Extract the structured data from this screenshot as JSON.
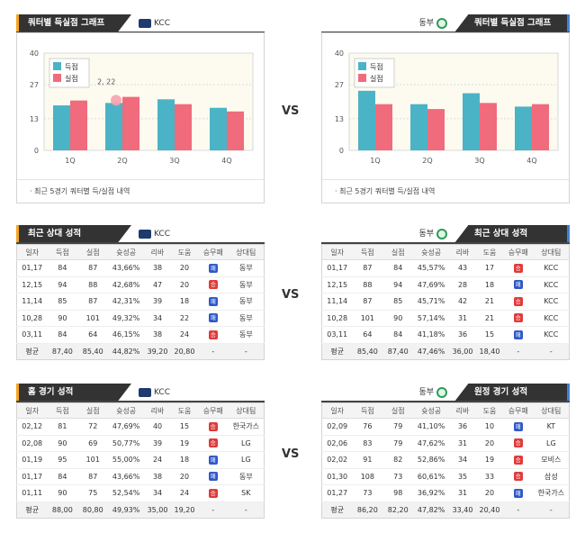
{
  "sections": {
    "quarter": {
      "left_title": "쿼터별 득실점 그래프",
      "right_title": "쿼터별 득실점 그래프",
      "note": "최근 5경기 쿼터별 득/실점 내역"
    },
    "recent": {
      "left_title": "최근 상대 성적",
      "right_title": "최근 상대 성적"
    },
    "venue": {
      "left_title": "홈 경기 성적",
      "right_title": "원정 경기 성적"
    }
  },
  "teams": {
    "left": "KCC",
    "right": "동부"
  },
  "vs_label": "VS",
  "legend": {
    "scored": "득점",
    "conceded": "실점"
  },
  "tooltip": "2, 22",
  "colors": {
    "scored": "#4bb3c6",
    "conceded": "#f06b7c",
    "accent_left": "#f5a623",
    "accent_right": "#3b82d6"
  },
  "chart_data": [
    {
      "type": "bar",
      "categories": [
        "1Q",
        "2Q",
        "3Q",
        "4Q"
      ],
      "series": [
        {
          "name": "득점",
          "values": [
            18.5,
            19.5,
            21,
            17.5
          ]
        },
        {
          "name": "실점",
          "values": [
            20.5,
            22,
            19,
            16
          ]
        }
      ],
      "yticks": [
        "0",
        "13",
        "27",
        "40"
      ],
      "ylim": [
        0,
        40
      ],
      "legend_position": "top-left",
      "grid": true
    },
    {
      "type": "bar",
      "categories": [
        "1Q",
        "2Q",
        "3Q",
        "4Q"
      ],
      "series": [
        {
          "name": "득점",
          "values": [
            24.5,
            19,
            23.5,
            18
          ]
        },
        {
          "name": "실점",
          "values": [
            19,
            17,
            19.5,
            19
          ]
        }
      ],
      "yticks": [
        "0",
        "13",
        "27",
        "40"
      ],
      "ylim": [
        0,
        40
      ],
      "legend_position": "top-left",
      "grid": true
    }
  ],
  "table_headers": [
    "일자",
    "득점",
    "실점",
    "슛성공",
    "리바",
    "도움",
    "승무패",
    "상대팀"
  ],
  "result_labels": {
    "win": "승",
    "loss": "패"
  },
  "avg_label": "평균",
  "recent_left": {
    "rows": [
      {
        "date": "01,17",
        "pts": "84",
        "opp": "87",
        "fg": "43,66%",
        "reb": "38",
        "ast": "20",
        "res": "loss",
        "team": "동부"
      },
      {
        "date": "12,15",
        "pts": "94",
        "opp": "88",
        "fg": "42,68%",
        "reb": "47",
        "ast": "20",
        "res": "win",
        "team": "동부"
      },
      {
        "date": "11,14",
        "pts": "85",
        "opp": "87",
        "fg": "42,31%",
        "reb": "39",
        "ast": "18",
        "res": "loss",
        "team": "동부"
      },
      {
        "date": "10,28",
        "pts": "90",
        "opp": "101",
        "fg": "49,32%",
        "reb": "34",
        "ast": "22",
        "res": "loss",
        "team": "동부"
      },
      {
        "date": "03,11",
        "pts": "84",
        "opp": "64",
        "fg": "46,15%",
        "reb": "38",
        "ast": "24",
        "res": "win",
        "team": "동부"
      }
    ],
    "avg": {
      "pts": "87,40",
      "opp": "85,40",
      "fg": "44,82%",
      "reb": "39,20",
      "ast": "20,80",
      "res": "-",
      "team": "-"
    }
  },
  "recent_right": {
    "rows": [
      {
        "date": "01,17",
        "pts": "87",
        "opp": "84",
        "fg": "45,57%",
        "reb": "43",
        "ast": "17",
        "res": "win",
        "team": "KCC"
      },
      {
        "date": "12,15",
        "pts": "88",
        "opp": "94",
        "fg": "47,69%",
        "reb": "28",
        "ast": "18",
        "res": "loss",
        "team": "KCC"
      },
      {
        "date": "11,14",
        "pts": "87",
        "opp": "85",
        "fg": "45,71%",
        "reb": "42",
        "ast": "21",
        "res": "win",
        "team": "KCC"
      },
      {
        "date": "10,28",
        "pts": "101",
        "opp": "90",
        "fg": "57,14%",
        "reb": "31",
        "ast": "21",
        "res": "win",
        "team": "KCC"
      },
      {
        "date": "03,11",
        "pts": "64",
        "opp": "84",
        "fg": "41,18%",
        "reb": "36",
        "ast": "15",
        "res": "loss",
        "team": "KCC"
      }
    ],
    "avg": {
      "pts": "85,40",
      "opp": "87,40",
      "fg": "47,46%",
      "reb": "36,00",
      "ast": "18,40",
      "res": "-",
      "team": "-"
    }
  },
  "venue_left": {
    "rows": [
      {
        "date": "02,12",
        "pts": "81",
        "opp": "72",
        "fg": "47,69%",
        "reb": "40",
        "ast": "15",
        "res": "win",
        "team": "한국가스"
      },
      {
        "date": "02,08",
        "pts": "90",
        "opp": "69",
        "fg": "50,77%",
        "reb": "39",
        "ast": "19",
        "res": "win",
        "team": "LG"
      },
      {
        "date": "01,19",
        "pts": "95",
        "opp": "101",
        "fg": "55,00%",
        "reb": "24",
        "ast": "18",
        "res": "loss",
        "team": "LG"
      },
      {
        "date": "01,17",
        "pts": "84",
        "opp": "87",
        "fg": "43,66%",
        "reb": "38",
        "ast": "20",
        "res": "loss",
        "team": "동부"
      },
      {
        "date": "01,11",
        "pts": "90",
        "opp": "75",
        "fg": "52,54%",
        "reb": "34",
        "ast": "24",
        "res": "win",
        "team": "SK"
      }
    ],
    "avg": {
      "pts": "88,00",
      "opp": "80,80",
      "fg": "49,93%",
      "reb": "35,00",
      "ast": "19,20",
      "res": "-",
      "team": "-"
    }
  },
  "venue_right": {
    "rows": [
      {
        "date": "02,09",
        "pts": "76",
        "opp": "79",
        "fg": "41,10%",
        "reb": "36",
        "ast": "10",
        "res": "loss",
        "team": "KT"
      },
      {
        "date": "02,06",
        "pts": "83",
        "opp": "79",
        "fg": "47,62%",
        "reb": "31",
        "ast": "20",
        "res": "win",
        "team": "LG"
      },
      {
        "date": "02,02",
        "pts": "91",
        "opp": "82",
        "fg": "52,86%",
        "reb": "34",
        "ast": "19",
        "res": "win",
        "team": "모비스"
      },
      {
        "date": "01,30",
        "pts": "108",
        "opp": "73",
        "fg": "60,61%",
        "reb": "35",
        "ast": "33",
        "res": "win",
        "team": "삼성"
      },
      {
        "date": "01,27",
        "pts": "73",
        "opp": "98",
        "fg": "36,92%",
        "reb": "31",
        "ast": "20",
        "res": "loss",
        "team": "한국가스"
      }
    ],
    "avg": {
      "pts": "86,20",
      "opp": "82,20",
      "fg": "47,82%",
      "reb": "33,40",
      "ast": "20,40",
      "res": "-",
      "team": "-"
    }
  }
}
